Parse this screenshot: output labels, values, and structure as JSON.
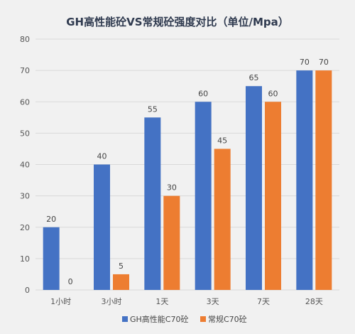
{
  "chart_data": {
    "type": "bar",
    "title": "GH高性能砼VS常规砼强度对比（单位/Mpa）",
    "categories": [
      "1小时",
      "3小时",
      "1天",
      "3天",
      "7天",
      "28天"
    ],
    "series": [
      {
        "name": "GH高性能C70砼",
        "values": [
          20,
          40,
          55,
          60,
          65,
          70
        ],
        "color": "#4472c4"
      },
      {
        "name": "常规C70砼",
        "values": [
          0,
          5,
          30,
          45,
          60,
          70
        ],
        "color": "#ed7d31"
      }
    ],
    "ylim": [
      0,
      80
    ],
    "yticks": [
      0,
      10,
      20,
      30,
      40,
      50,
      60,
      70,
      80
    ],
    "grid": true,
    "legend": "bottom",
    "background": "#f1f1f1"
  }
}
